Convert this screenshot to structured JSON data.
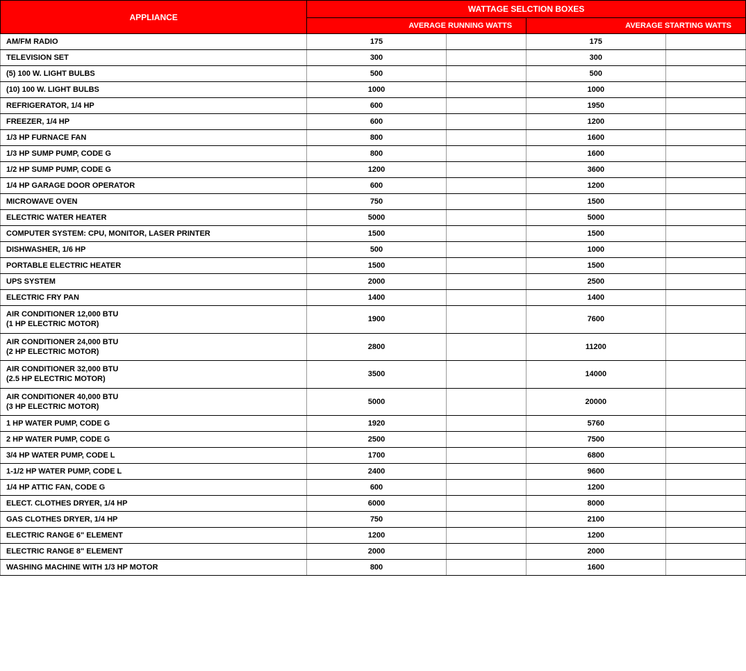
{
  "headers": {
    "appliance": "APPLIANCE",
    "wattage_group": "WATTAGE SELCTION BOXES",
    "running": "AVERAGE RUNNING WATTS",
    "starting": "AVERAGE STARTING WATTS"
  },
  "colors": {
    "header_bg": "#ff0000",
    "header_text": "#ffffff",
    "border": "#000000",
    "cell_border": "#999999"
  },
  "rows": [
    {
      "appliance": "AM/FM RADIO",
      "running": "175",
      "starting": "175",
      "two_line": false
    },
    {
      "appliance": "TELEVISION SET",
      "running": "300",
      "starting": "300",
      "two_line": false
    },
    {
      "appliance": "(5) 100 W. LIGHT BULBS",
      "running": "500",
      "starting": "500",
      "two_line": false
    },
    {
      "appliance": "(10) 100 W. LIGHT BULBS",
      "running": "1000",
      "starting": "1000",
      "two_line": false
    },
    {
      "appliance": "REFRIGERATOR, 1/4 HP",
      "running": "600",
      "starting": "1950",
      "two_line": false
    },
    {
      "appliance": "FREEZER, 1/4 HP",
      "running": "600",
      "starting": "1200",
      "two_line": false
    },
    {
      "appliance": "1/3 HP FURNACE FAN",
      "running": "800",
      "starting": "1600",
      "two_line": false
    },
    {
      "appliance": "1/3 HP SUMP PUMP, CODE G",
      "running": "800",
      "starting": "1600",
      "two_line": false
    },
    {
      "appliance": "1/2 HP SUMP PUMP, CODE G",
      "running": "1200",
      "starting": "3600",
      "two_line": false
    },
    {
      "appliance": "1/4 HP GARAGE DOOR OPERATOR",
      "running": "600",
      "starting": "1200",
      "two_line": false
    },
    {
      "appliance": "MICROWAVE OVEN",
      "running": "750",
      "starting": "1500",
      "two_line": false
    },
    {
      "appliance": "ELECTRIC WATER HEATER",
      "running": "5000",
      "starting": "5000",
      "two_line": false
    },
    {
      "appliance": "COMPUTER SYSTEM: CPU, MONITOR, LASER PRINTER",
      "running": "1500",
      "starting": "1500",
      "two_line": false
    },
    {
      "appliance": "DISHWASHER, 1/6 HP",
      "running": "500",
      "starting": "1000",
      "two_line": false
    },
    {
      "appliance": "PORTABLE ELECTRIC HEATER",
      "running": "1500",
      "starting": "1500",
      "two_line": false
    },
    {
      "appliance": "UPS SYSTEM",
      "running": "2000",
      "starting": "2500",
      "two_line": false
    },
    {
      "appliance": "ELECTRIC FRY PAN",
      "running": "1400",
      "starting": "1400",
      "two_line": false
    },
    {
      "appliance": "AIR CONDITIONER 12,000 BTU\n(1 HP ELECTRIC MOTOR)",
      "running": "1900",
      "starting": "7600",
      "two_line": true
    },
    {
      "appliance": "AIR CONDITIONER 24,000 BTU\n(2 HP ELECTRIC MOTOR)",
      "running": "2800",
      "starting": "11200",
      "two_line": true
    },
    {
      "appliance": "AIR CONDITIONER 32,000 BTU\n(2.5 HP ELECTRIC MOTOR)",
      "running": "3500",
      "starting": "14000",
      "two_line": true
    },
    {
      "appliance": "AIR CONDITIONER 40,000 BTU\n(3 HP ELECTRIC MOTOR)",
      "running": "5000",
      "starting": "20000",
      "two_line": true
    },
    {
      "appliance": "1 HP WATER PUMP, CODE G",
      "running": "1920",
      "starting": "5760",
      "two_line": false
    },
    {
      "appliance": "2 HP WATER PUMP, CODE G",
      "running": "2500",
      "starting": "7500",
      "two_line": false
    },
    {
      "appliance": "3/4 HP WATER PUMP, CODE L",
      "running": "1700",
      "starting": "6800",
      "two_line": false
    },
    {
      "appliance": "1-1/2 HP WATER PUMP, CODE L",
      "running": "2400",
      "starting": "9600",
      "two_line": false
    },
    {
      "appliance": "1/4 HP ATTIC FAN, CODE G",
      "running": "600",
      "starting": "1200",
      "two_line": false
    },
    {
      "appliance": "ELECT. CLOTHES DRYER, 1/4 HP",
      "running": "6000",
      "starting": "8000",
      "two_line": false
    },
    {
      "appliance": "GAS CLOTHES DRYER, 1/4 HP",
      "running": "750",
      "starting": "2100",
      "two_line": false
    },
    {
      "appliance": "ELECTRIC RANGE 6\" ELEMENT",
      "running": "1200",
      "starting": "1200",
      "two_line": false
    },
    {
      "appliance": "ELECTRIC RANGE 8\" ELEMENT",
      "running": "2000",
      "starting": "2000",
      "two_line": false
    },
    {
      "appliance": "WASHING MACHINE WITH 1/3 HP MOTOR",
      "running": "800",
      "starting": "1600",
      "two_line": false
    }
  ]
}
